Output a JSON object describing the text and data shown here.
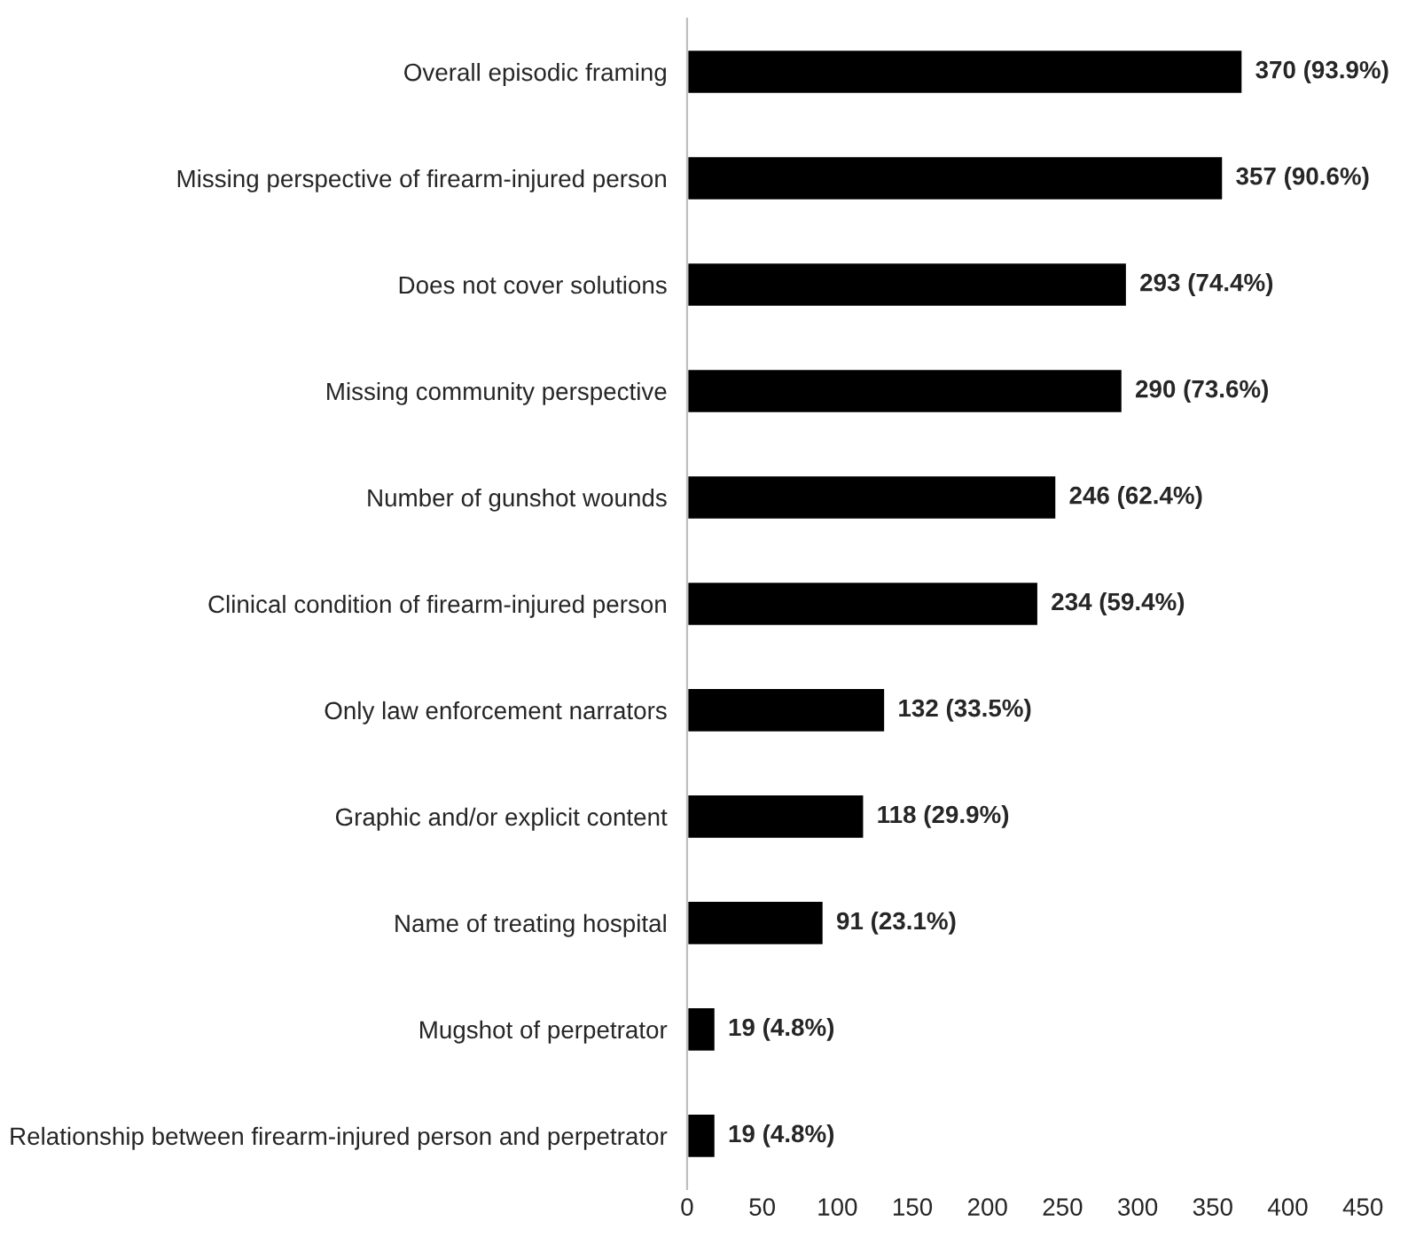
{
  "chart_data": {
    "type": "bar",
    "orientation": "horizontal",
    "categories": [
      "Overall episodic framing",
      "Missing perspective of firearm-injured person",
      "Does not cover solutions",
      "Missing community perspective",
      "Number of gunshot wounds",
      "Clinical condition of firearm-injured person",
      "Only law enforcement narrators",
      "Graphic and/or explicit content",
      "Name of treating hospital",
      "Mugshot of perpetrator",
      "Relationship between firearm-injured person and perpetrator"
    ],
    "values": [
      370,
      357,
      293,
      290,
      246,
      234,
      132,
      118,
      91,
      19,
      19
    ],
    "value_labels": [
      "370 (93.9%)",
      "357 (90.6%)",
      "293 (74.4%)",
      "290 (73.6%)",
      "246 (62.4%)",
      "234 (59.4%)",
      "132 (33.5%)",
      "118 (29.9%)",
      "91 (23.1%)",
      "19 (4.8%)",
      "19 (4.8%)"
    ],
    "color": "#000000",
    "xlim": [
      0,
      450
    ],
    "xticks": [
      0,
      50,
      100,
      150,
      200,
      250,
      300,
      350,
      400,
      450
    ],
    "grid": false,
    "legend": false
  }
}
